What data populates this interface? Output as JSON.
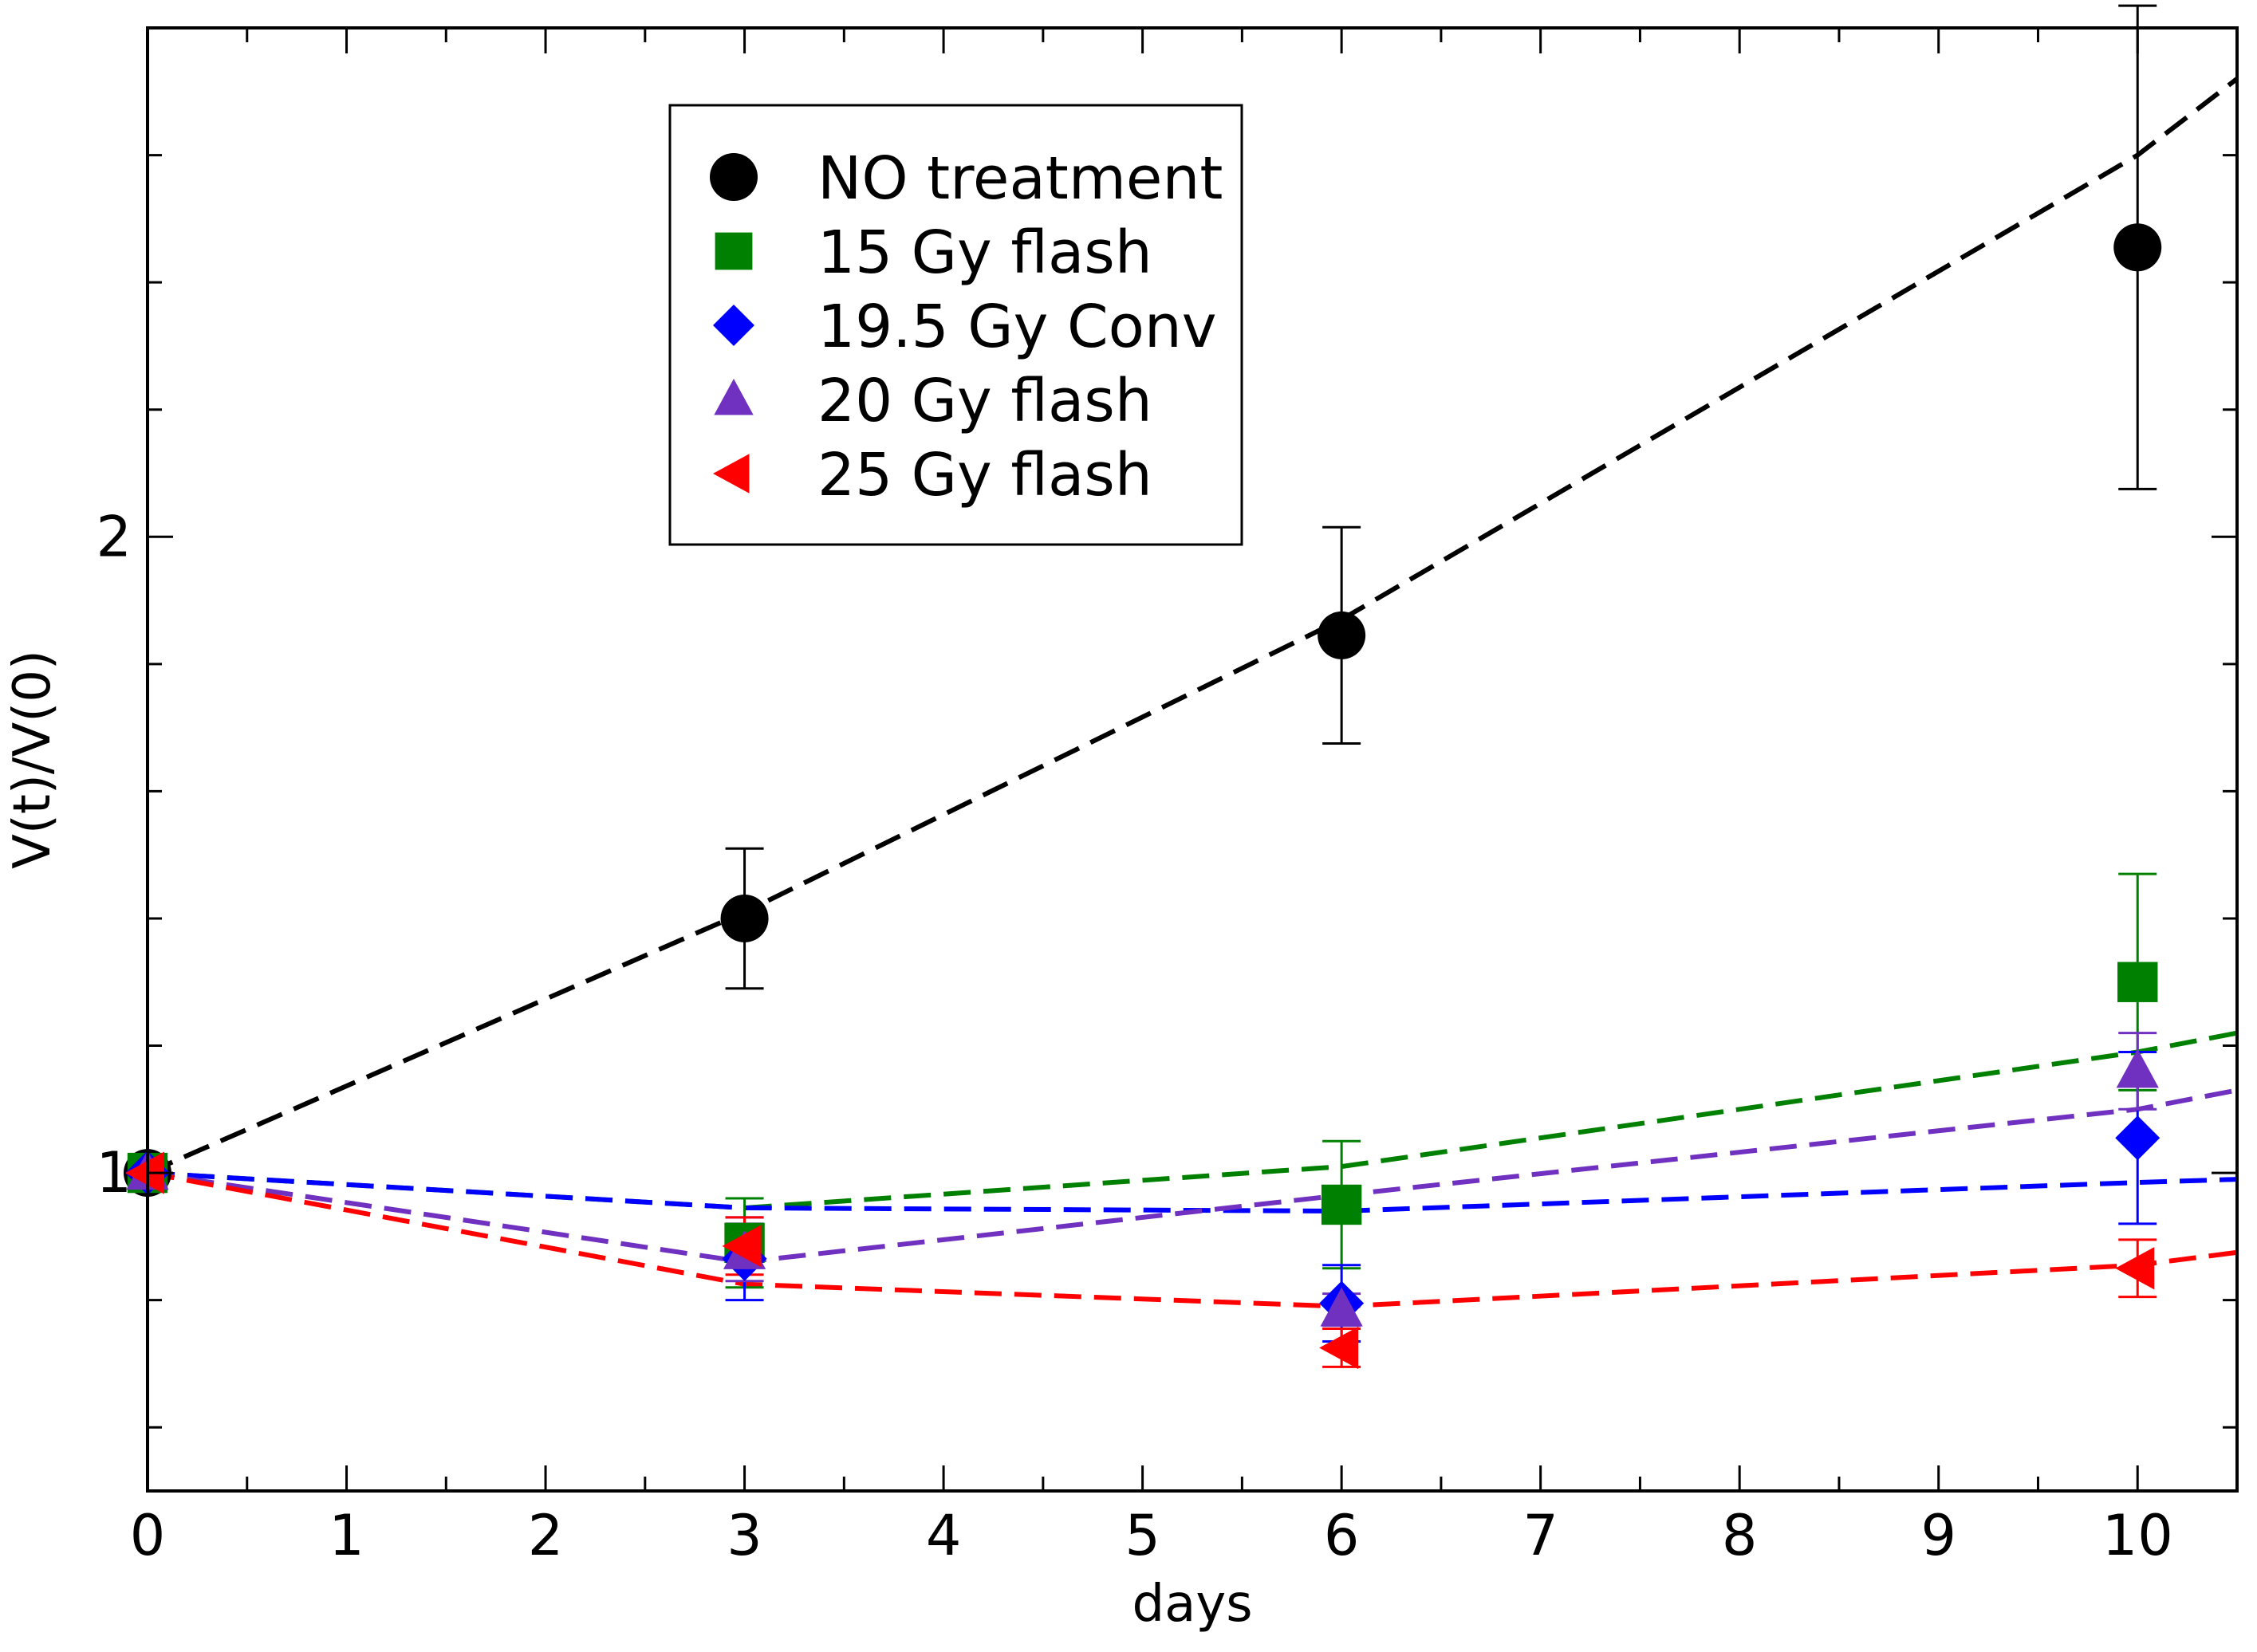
{
  "chart_data": {
    "type": "line",
    "title": "",
    "xlabel": "days",
    "ylabel": "V(t)/V(0)",
    "xlim": [
      0,
      10.5
    ],
    "ylim": [
      0.5,
      2.8
    ],
    "xticks": [
      0,
      1,
      2,
      3,
      4,
      5,
      6,
      7,
      8,
      9,
      10
    ],
    "xtick_labels": [
      "0",
      "1",
      "2",
      "3",
      "4",
      "5",
      "6",
      "7",
      "8",
      "9",
      "10"
    ],
    "yticks": [
      1,
      2
    ],
    "ytick_labels": [
      "1",
      "2"
    ],
    "y_minor_step": 0.2,
    "x_minor_step": 0.5,
    "grid": false,
    "legend_position": "top-center",
    "series": [
      {
        "name": "NO treatment",
        "color": "#000000",
        "marker": "circle",
        "x": [
          0,
          3,
          6,
          10
        ],
        "values": [
          1.0,
          1.4,
          1.845,
          2.455
        ],
        "err": [
          0,
          0.11,
          0.17,
          0.38
        ],
        "fit": [
          [
            0,
            1.0
          ],
          [
            3,
            1.41
          ],
          [
            6,
            1.87
          ],
          [
            10,
            2.6
          ],
          [
            10.5,
            2.72
          ]
        ]
      },
      {
        "name": "15 Gy flash",
        "color": "#008000",
        "marker": "square",
        "x": [
          0,
          3,
          6,
          10
        ],
        "values": [
          1.0,
          0.89,
          0.95,
          1.3
        ],
        "err": [
          0,
          0.07,
          0.1,
          0.17
        ],
        "fit": [
          [
            0,
            1.0
          ],
          [
            3,
            0.945
          ],
          [
            6,
            1.01
          ],
          [
            10,
            1.19
          ],
          [
            10.5,
            1.22
          ]
        ]
      },
      {
        "name": "19.5 Gy Conv",
        "color": "#0000ff",
        "marker": "diamond",
        "x": [
          0,
          3,
          6,
          10
        ],
        "values": [
          1.0,
          0.865,
          0.795,
          1.055
        ],
        "err": [
          0,
          0.065,
          0.06,
          0.135
        ],
        "fit": [
          [
            0,
            1.0
          ],
          [
            3,
            0.945
          ],
          [
            6,
            0.94
          ],
          [
            10,
            0.985
          ],
          [
            10.5,
            0.99
          ]
        ]
      },
      {
        "name": "20 Gy flash",
        "color": "#7030c0",
        "marker": "triangle-up",
        "x": [
          0,
          3,
          6,
          10
        ],
        "values": [
          1.0,
          0.875,
          0.785,
          1.16
        ],
        "err": [
          0,
          0.045,
          0.025,
          0.06
        ],
        "fit": [
          [
            0,
            1.0
          ],
          [
            3,
            0.86
          ],
          [
            6,
            0.965
          ],
          [
            10,
            1.1
          ],
          [
            10.5,
            1.13
          ]
        ]
      },
      {
        "name": "25 Gy flash",
        "color": "#ff0000",
        "marker": "triangle-left",
        "x": [
          0,
          3,
          6,
          10
        ],
        "values": [
          1.0,
          0.885,
          0.725,
          0.85
        ],
        "err": [
          0,
          0.045,
          0.03,
          0.045
        ],
        "fit": [
          [
            0,
            1.0
          ],
          [
            3,
            0.825
          ],
          [
            6,
            0.79
          ],
          [
            10,
            0.855
          ],
          [
            10.5,
            0.875
          ]
        ]
      }
    ]
  }
}
